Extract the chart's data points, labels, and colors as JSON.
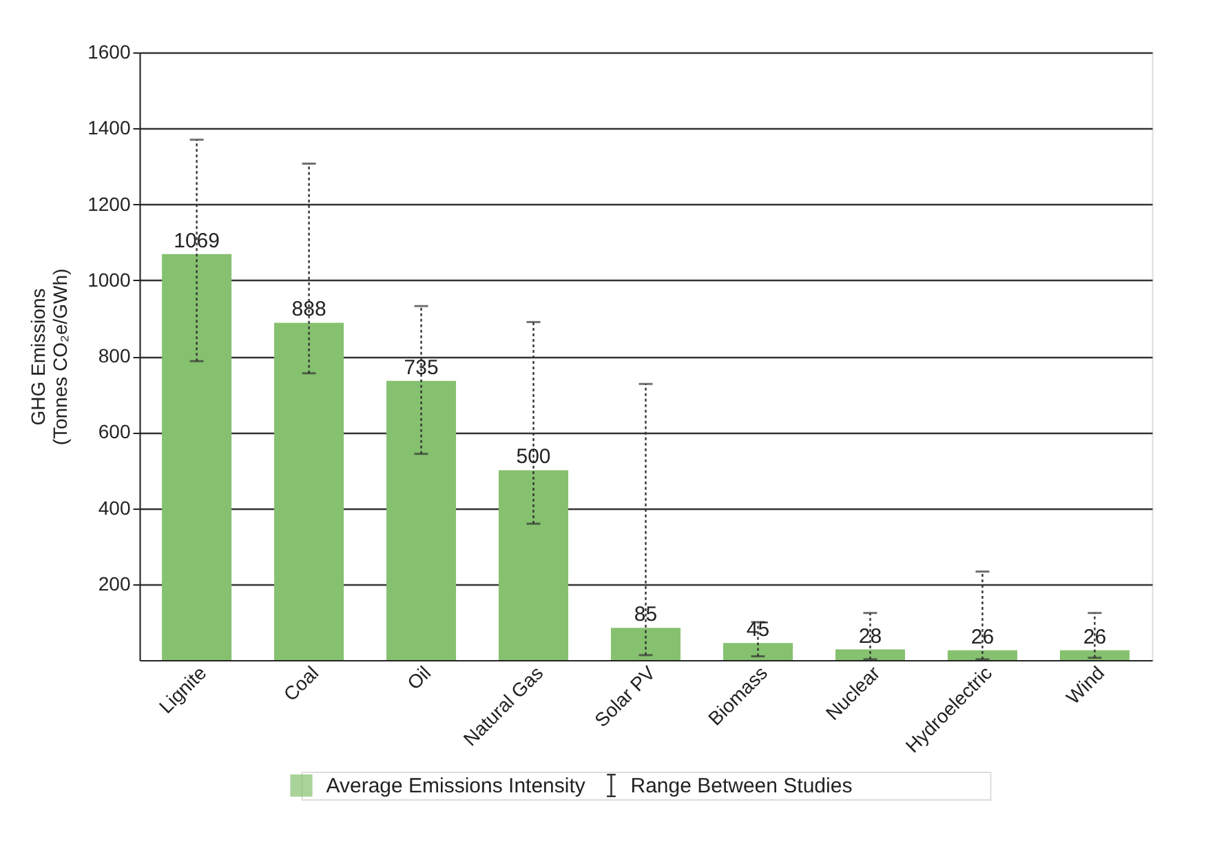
{
  "chart_data": {
    "type": "bar",
    "categories": [
      "Lignite",
      "Coal",
      "Oil",
      "Natural Gas",
      "Solar PV",
      "Biomass",
      "Nuclear",
      "Hydroelectric",
      "Wind"
    ],
    "series": [
      {
        "name": "Average Emissions Intensity",
        "color": "#86c16f",
        "values": [
          1069,
          888,
          735,
          500,
          85,
          45,
          28,
          26,
          26
        ],
        "errors": [
          [
            787,
            1370
          ],
          [
            755,
            1307
          ],
          [
            543,
            932
          ],
          [
            359,
            890
          ],
          [
            13,
            727
          ],
          [
            10,
            100
          ],
          [
            2,
            124
          ],
          [
            2,
            233
          ],
          [
            6,
            124
          ]
        ]
      }
    ],
    "ylabel": "GHG Emissions\n(Tonnes CO₂e/GWh)",
    "ylim": [
      0,
      1600
    ],
    "yticks": [
      200,
      400,
      600,
      800,
      1000,
      1200,
      1400,
      1600
    ],
    "grid": "y",
    "data_labels": true,
    "legend": "bottom",
    "annotations": [
      "Range Between Studies"
    ]
  }
}
